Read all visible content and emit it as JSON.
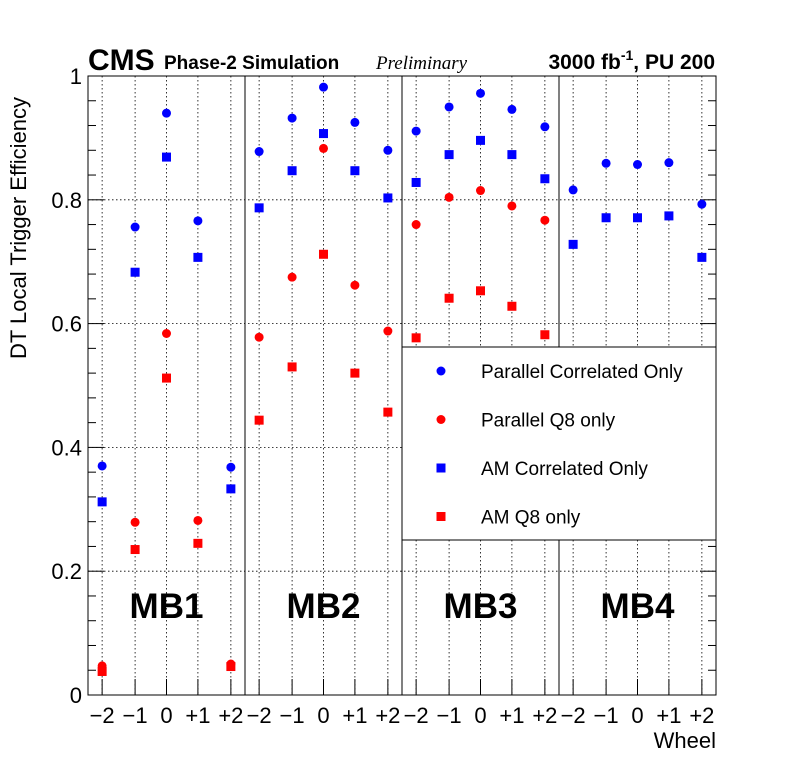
{
  "header": {
    "cms": "CMS",
    "simulation": "Phase-2 Simulation",
    "preliminary": "Preliminary",
    "lumi_main": "3000 fb",
    "lumi_sup": "-1",
    "lumi_tail": ", PU 200"
  },
  "colors": {
    "blue": "#0000ff",
    "red": "#ff0000",
    "frame": "#000000",
    "grid": "#000000"
  },
  "chart_data": {
    "type": "scatter",
    "ylabel": "DT Local Trigger Efficiency",
    "xlabel": "Wheel",
    "ylim": [
      0,
      1
    ],
    "yticks": [
      0,
      0.2,
      0.4,
      0.6,
      0.8,
      1
    ],
    "ytick_labels": [
      "0",
      "0.2",
      "0.4",
      "0.6",
      "0.8",
      "1"
    ],
    "wheel_labels": [
      "−2",
      "−1",
      "0",
      "+1",
      "+2"
    ],
    "wheels": [
      -2,
      -1,
      0,
      1,
      2
    ],
    "stations": [
      {
        "name": "MB1",
        "series": {
          "parallel_correlated": [
            0.37,
            0.756,
            0.94,
            0.766,
            0.368
          ],
          "parallel_q8": [
            0.047,
            0.279,
            0.584,
            0.282,
            0.05
          ],
          "am_correlated": [
            0.312,
            0.683,
            0.869,
            0.707,
            0.333
          ],
          "am_q8": [
            0.038,
            0.235,
            0.512,
            0.245,
            0.046
          ]
        }
      },
      {
        "name": "MB2",
        "series": {
          "parallel_correlated": [
            0.878,
            0.932,
            0.982,
            0.925,
            0.88
          ],
          "parallel_q8": [
            0.578,
            0.675,
            0.883,
            0.662,
            0.588
          ],
          "am_correlated": [
            0.787,
            0.847,
            0.907,
            0.847,
            0.803
          ],
          "am_q8": [
            0.444,
            0.53,
            0.712,
            0.52,
            0.457
          ]
        }
      },
      {
        "name": "MB3",
        "series": {
          "parallel_correlated": [
            0.911,
            0.95,
            0.972,
            0.946,
            0.918
          ],
          "parallel_q8": [
            0.76,
            0.804,
            0.815,
            0.79,
            0.767
          ],
          "am_correlated": [
            0.828,
            0.873,
            0.896,
            0.873,
            0.834
          ],
          "am_q8": [
            0.577,
            0.641,
            0.653,
            0.628,
            0.582
          ]
        }
      },
      {
        "name": "MB4",
        "series": {
          "parallel_correlated": [
            0.816,
            0.859,
            0.857,
            0.86,
            0.793
          ],
          "parallel_q8": [
            null,
            null,
            null,
            null,
            null
          ],
          "am_correlated": [
            0.728,
            0.771,
            0.771,
            0.774,
            0.707
          ],
          "am_q8": [
            null,
            null,
            null,
            null,
            null
          ]
        }
      }
    ],
    "legend": {
      "position": "right-middle",
      "entries": [
        {
          "key": "parallel_correlated",
          "label": "Parallel Correlated Only",
          "marker": "circle",
          "color": "#0000ff"
        },
        {
          "key": "parallel_q8",
          "label": "Parallel Q8 only",
          "marker": "circle",
          "color": "#ff0000"
        },
        {
          "key": "am_correlated",
          "label": "AM Correlated Only",
          "marker": "square",
          "color": "#0000ff"
        },
        {
          "key": "am_q8",
          "label": "AM Q8 only",
          "marker": "square",
          "color": "#ff0000"
        }
      ]
    }
  }
}
